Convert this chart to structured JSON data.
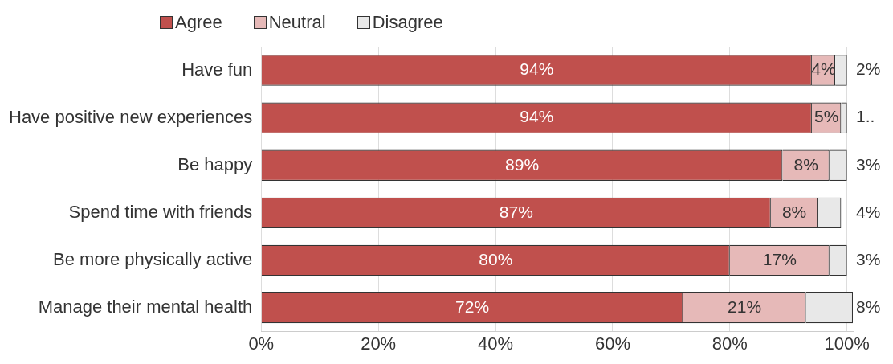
{
  "chart_data": {
    "type": "bar",
    "orientation": "horizontal",
    "stacked": true,
    "categories": [
      "Have fun",
      "Have positive new experiences",
      "Be happy",
      "Spend time with friends",
      "Be more physically active",
      "Manage their mental health"
    ],
    "series": [
      {
        "name": "Agree",
        "color": "#c0504d",
        "values": [
          94,
          94,
          89,
          87,
          80,
          72
        ],
        "value_labels": [
          "94%",
          "94%",
          "89%",
          "87%",
          "80%",
          "72%"
        ]
      },
      {
        "name": "Neutral",
        "color": "#e6b9b8",
        "values": [
          4,
          5,
          8,
          8,
          17,
          21
        ],
        "value_labels": [
          "4%",
          "5%",
          "8%",
          "8%",
          "17%",
          "21%"
        ]
      },
      {
        "name": "Disagree",
        "color": "#e8e8e8",
        "values": [
          2,
          1,
          3,
          4,
          3,
          8
        ],
        "value_labels": [
          "2%",
          "1..",
          "3%",
          "4%",
          "3%",
          "8%"
        ]
      }
    ],
    "xlim": [
      0,
      101
    ],
    "xticks": [
      {
        "value": 0,
        "label": "0%"
      },
      {
        "value": 20,
        "label": "20%"
      },
      {
        "value": 40,
        "label": "40%"
      },
      {
        "value": 60,
        "label": "60%"
      },
      {
        "value": 80,
        "label": "80%"
      },
      {
        "value": 100,
        "label": "100%"
      }
    ],
    "grid": "x",
    "legend": "top"
  }
}
